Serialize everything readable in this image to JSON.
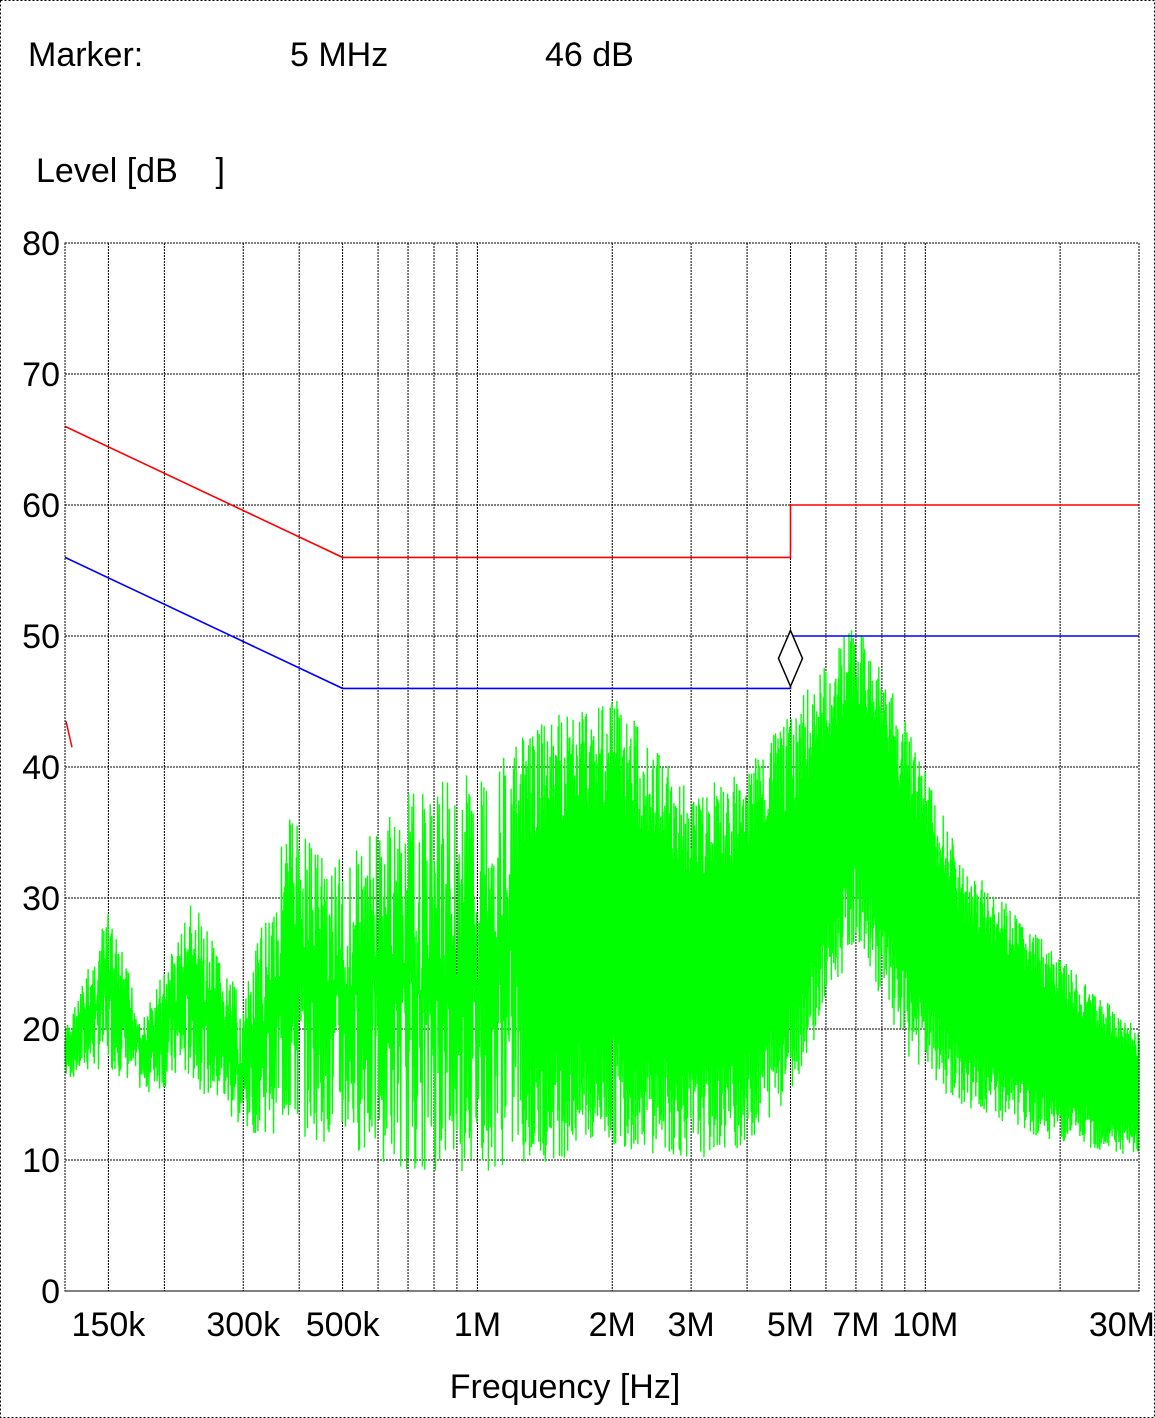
{
  "header": {
    "marker_label": "Marker:",
    "marker_freq": "5 MHz",
    "marker_level": "46 dB"
  },
  "chart_data": {
    "type": "line",
    "ylabel": "Level [dB    ]",
    "xlabel": "Frequency [Hz]",
    "x_scale": "log",
    "xlim": [
      120000,
      30000000
    ],
    "ylim": [
      0,
      80
    ],
    "grid": true,
    "y_ticks": [
      0,
      10,
      20,
      30,
      40,
      50,
      60,
      70,
      80
    ],
    "y_tick_labels": [
      "0",
      "10",
      "20",
      "30",
      "40",
      "50",
      "60",
      "70",
      "80"
    ],
    "x_ticks": [
      150000,
      300000,
      500000,
      1000000,
      2000000,
      3000000,
      5000000,
      7000000,
      10000000,
      30000000
    ],
    "x_tick_labels": [
      "150k",
      "300k",
      "500k",
      "1M",
      "2M",
      "3M",
      "5M",
      "7M",
      "10M",
      "30M"
    ],
    "x_gridlines": [
      150000,
      200000,
      300000,
      400000,
      500000,
      600000,
      700000,
      800000,
      900000,
      1000000,
      2000000,
      3000000,
      4000000,
      5000000,
      6000000,
      7000000,
      8000000,
      9000000,
      10000000,
      20000000,
      30000000
    ],
    "marker": {
      "x": 5000000,
      "y": 46,
      "shape": "diamond",
      "color": "#000000"
    },
    "series": [
      {
        "color": "#ff0000",
        "points": [
          [
            120000,
            66
          ],
          [
            500000,
            56
          ],
          [
            5000000,
            56
          ],
          [
            5000000,
            60
          ],
          [
            30000000,
            60
          ]
        ]
      },
      {
        "color": "#0000ff",
        "points": [
          [
            120000,
            56
          ],
          [
            500000,
            46
          ],
          [
            5000000,
            46
          ],
          [
            5000000,
            50
          ],
          [
            30000000,
            50
          ]
        ]
      },
      {
        "color": "#00ff00",
        "style": "dense-noise",
        "envelope": [
          {
            "f": 120000,
            "hi": 20,
            "lo": 16
          },
          {
            "f": 150000,
            "hi": 29,
            "lo": 17
          },
          {
            "f": 180000,
            "hi": 21,
            "lo": 15
          },
          {
            "f": 230000,
            "hi": 30,
            "lo": 16
          },
          {
            "f": 300000,
            "hi": 22,
            "lo": 12
          },
          {
            "f": 380000,
            "hi": 37,
            "lo": 12
          },
          {
            "f": 500000,
            "hi": 33,
            "lo": 11
          },
          {
            "f": 700000,
            "hi": 38,
            "lo": 9
          },
          {
            "f": 1000000,
            "hi": 40,
            "lo": 9
          },
          {
            "f": 1500000,
            "hi": 44,
            "lo": 10
          },
          {
            "f": 2000000,
            "hi": 46,
            "lo": 11
          },
          {
            "f": 3000000,
            "hi": 38,
            "lo": 10
          },
          {
            "f": 4000000,
            "hi": 40,
            "lo": 11
          },
          {
            "f": 5000000,
            "hi": 44,
            "lo": 15
          },
          {
            "f": 6500000,
            "hi": 50,
            "lo": 24
          },
          {
            "f": 7000000,
            "hi": 51,
            "lo": 27
          },
          {
            "f": 9000000,
            "hi": 44,
            "lo": 18
          },
          {
            "f": 12000000,
            "hi": 33,
            "lo": 14
          },
          {
            "f": 17000000,
            "hi": 28,
            "lo": 12
          },
          {
            "f": 22000000,
            "hi": 24,
            "lo": 11
          },
          {
            "f": 30000000,
            "hi": 20,
            "lo": 10
          }
        ]
      }
    ]
  }
}
